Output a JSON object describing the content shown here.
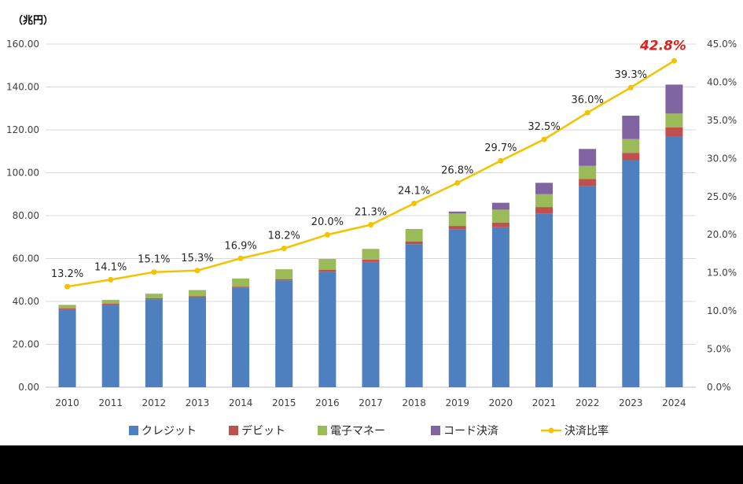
{
  "chart_data": {
    "type": "bar+line",
    "y_unit_label": "（兆円）",
    "categories": [
      "2010",
      "2011",
      "2012",
      "2013",
      "2014",
      "2015",
      "2016",
      "2017",
      "2018",
      "2019",
      "2020",
      "2021",
      "2022",
      "2023",
      "2024"
    ],
    "series": [
      {
        "name": "クレジット",
        "type": "bar",
        "axis": "left",
        "color": "#4E7FBF",
        "values": [
          36.3,
          38.4,
          41.0,
          41.8,
          46.3,
          49.8,
          53.9,
          58.4,
          66.7,
          73.5,
          74.6,
          81.0,
          93.8,
          105.7,
          116.9
        ]
      },
      {
        "name": "デビット",
        "type": "bar",
        "axis": "left",
        "color": "#C0504D",
        "values": [
          0.5,
          0.5,
          0.5,
          0.6,
          0.6,
          0.6,
          0.9,
          1.1,
          1.3,
          1.7,
          2.2,
          3.0,
          3.3,
          3.6,
          4.3
        ]
      },
      {
        "name": "電子マネー",
        "type": "bar",
        "axis": "left",
        "color": "#9BBB59",
        "values": [
          1.6,
          1.8,
          2.1,
          2.9,
          3.8,
          4.6,
          5.0,
          5.0,
          5.5,
          5.8,
          6.0,
          6.0,
          6.1,
          6.4,
          6.4
        ]
      },
      {
        "name": "コード決済",
        "type": "bar",
        "axis": "left",
        "color": "#8064A2",
        "values": [
          0,
          0,
          0,
          0,
          0,
          0,
          0,
          0,
          0.2,
          0.9,
          3.2,
          5.3,
          7.9,
          10.9,
          13.5
        ]
      },
      {
        "name": "決済比率",
        "type": "line",
        "axis": "right",
        "color": "#F5C200",
        "values": [
          13.2,
          14.1,
          15.1,
          15.3,
          16.9,
          18.2,
          20.0,
          21.3,
          24.1,
          26.8,
          29.7,
          32.5,
          36.0,
          39.3,
          42.8
        ],
        "labels": [
          "13.2%",
          "14.1%",
          "15.1%",
          "15.3%",
          "16.9%",
          "18.2%",
          "20.0%",
          "21.3%",
          "24.1%",
          "26.8%",
          "29.7%",
          "32.5%",
          "36.0%",
          "39.3%",
          "42.8%"
        ],
        "highlight_color": "#E0201B"
      }
    ],
    "y_left": {
      "min": 0,
      "max": 160,
      "step": 20,
      "tick_labels": [
        "0.00",
        "20.00",
        "40.00",
        "60.00",
        "80.00",
        "100.00",
        "120.00",
        "140.00",
        "160.00"
      ]
    },
    "y_right": {
      "min": 0,
      "max": 45,
      "step": 5,
      "tick_labels": [
        "0.0%",
        "5.0%",
        "10.0%",
        "15.0%",
        "20.0%",
        "25.0%",
        "30.0%",
        "35.0%",
        "40.0%",
        "45.0%"
      ]
    },
    "grid": true,
    "legend_position": "bottom"
  }
}
